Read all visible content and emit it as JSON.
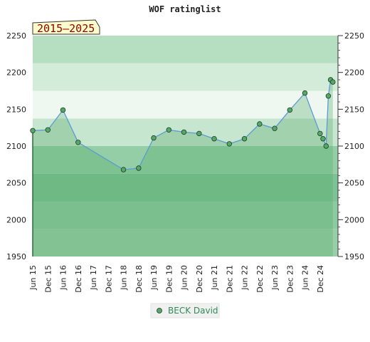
{
  "chart_data": {
    "type": "area",
    "title": "WOF ratinglist",
    "period_label": "2015–2025",
    "ylim": [
      1950,
      2250
    ],
    "yticks": [
      1950,
      2000,
      2050,
      2100,
      2150,
      2200,
      2250
    ],
    "x_ticks": [
      "Jun 15",
      "Dec 15",
      "Jun 16",
      "Dec 16",
      "Jun 17",
      "Dec 17",
      "Jun 18",
      "Dec 18",
      "Jun 19",
      "Dec 19",
      "Jun 20",
      "Dec 20",
      "Jun 21",
      "Dec 21",
      "Jun 22",
      "Dec 22",
      "Jun 23",
      "Dec 23",
      "Jun 24",
      "Dec 24"
    ],
    "xlim": [
      0,
      20
    ],
    "band_colors": [
      "#98cfa8",
      "#8dca9f",
      "#7dc294",
      "#94cea6",
      "#c7e6cf",
      "#eef8f0",
      "#d3ecd9",
      "#b6dec1"
    ],
    "series": [
      {
        "name": "BECK David",
        "line_color": "#5b9bd5",
        "marker_color": "#55a868",
        "x": [
          0,
          1,
          2,
          3,
          6,
          7,
          8,
          9,
          10,
          11,
          12,
          13,
          14,
          15,
          16,
          17,
          18,
          19.0,
          19.2,
          19.4,
          19.55,
          19.7,
          19.85
        ],
        "y": [
          2121,
          2122,
          2149,
          2105,
          2068,
          2070,
          2111,
          2122,
          2119,
          2117,
          2110,
          2103,
          2110,
          2130,
          2124,
          2149,
          2172,
          2117,
          2110,
          2100,
          2168,
          2190,
          2187
        ]
      }
    ]
  },
  "legend": {
    "label": "BECK David"
  }
}
